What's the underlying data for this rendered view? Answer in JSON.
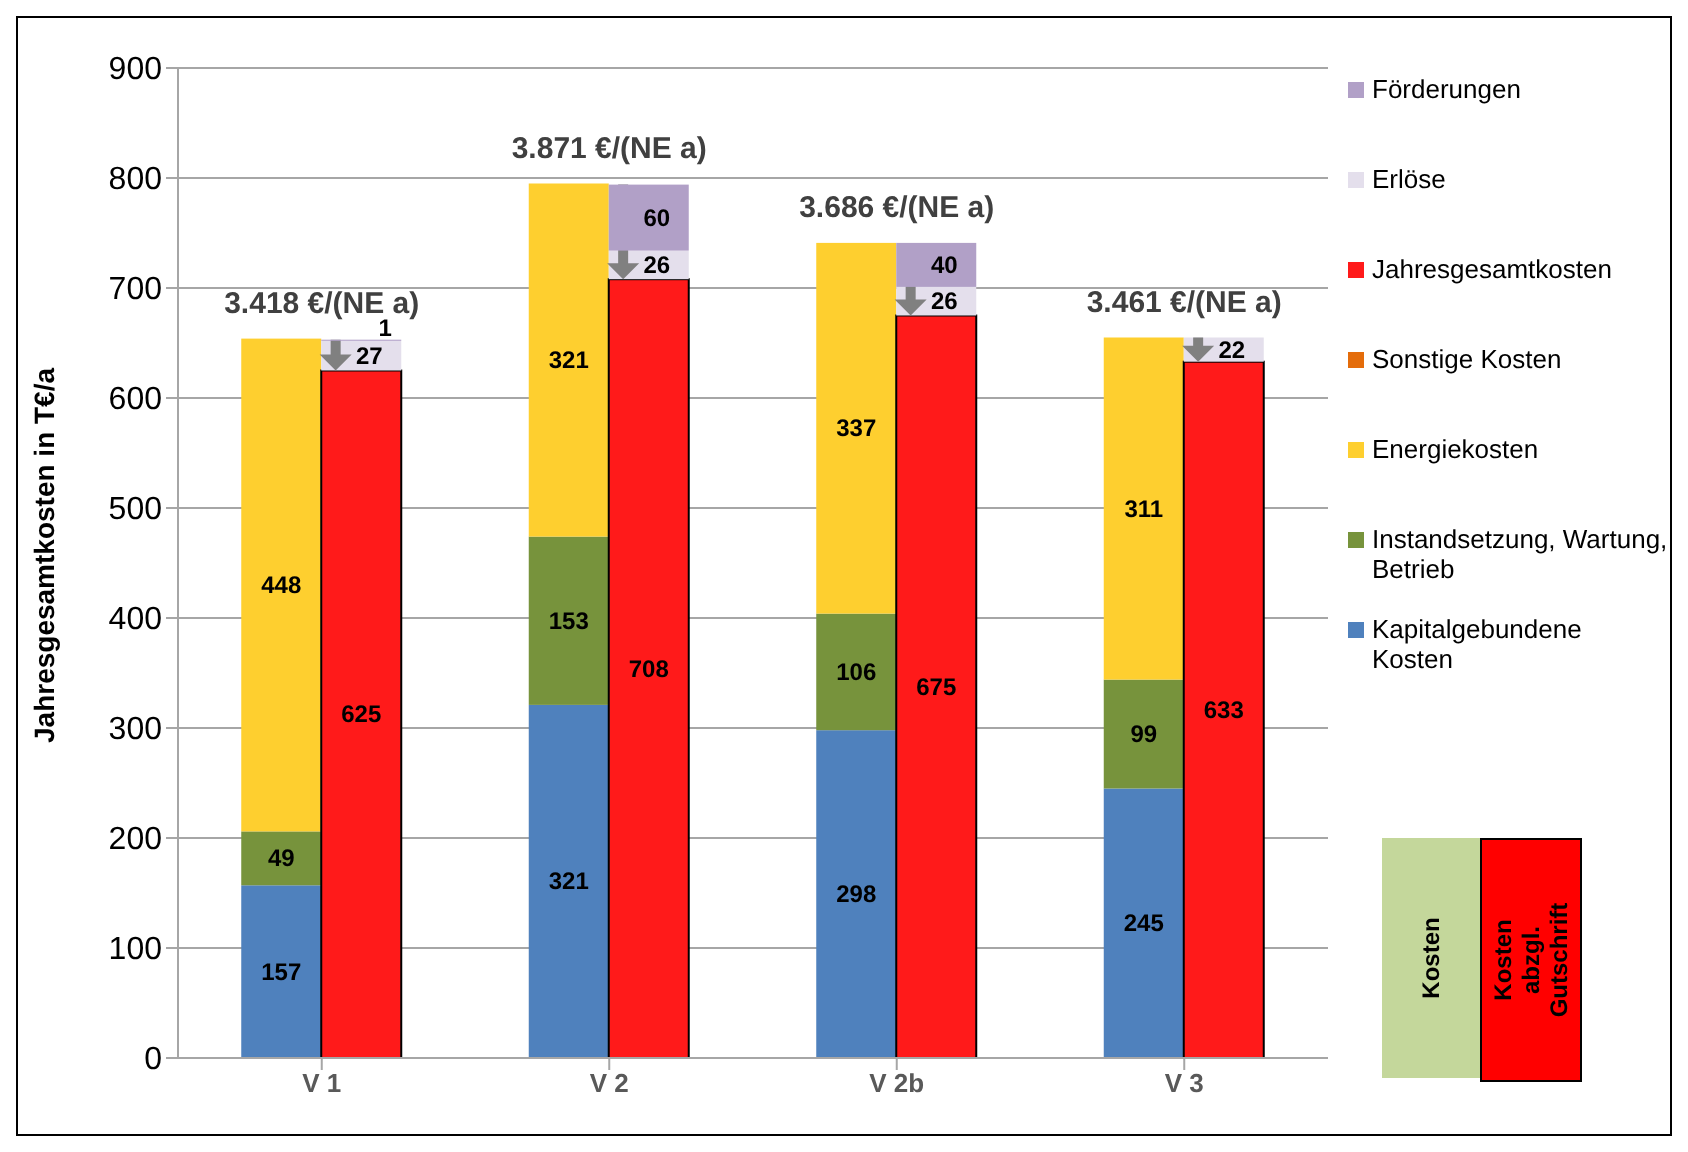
{
  "chart_data": {
    "type": "bar",
    "categories": [
      "V 1",
      "V 2",
      "V 2b",
      "V 3"
    ],
    "ylabel": "Jahresgesamtkosten  in T€/a",
    "ylim": [
      0,
      900
    ],
    "yticks": [
      0,
      100,
      200,
      300,
      400,
      500,
      600,
      700,
      800,
      900
    ],
    "grid": "y",
    "legend": "right",
    "series": [
      {
        "name": "Kapitalgebundene Kosten",
        "color": "#4f81bd",
        "values": [
          157,
          321,
          298,
          245
        ],
        "base": [
          0,
          0,
          0,
          0
        ],
        "value_labels": [
          "157",
          "321",
          "298",
          "245"
        ]
      },
      {
        "name": "Instandsetzung, Wartung, Betrieb",
        "color": "#77933c",
        "values": [
          49,
          153,
          106,
          99
        ],
        "base": [
          157,
          321,
          298,
          245
        ],
        "value_labels": [
          "49",
          "153",
          "106",
          "99"
        ]
      },
      {
        "name": "Energiekosten",
        "color": "#fecf2f",
        "values": [
          448,
          321,
          337,
          311
        ],
        "base": [
          206,
          474,
          404,
          344
        ],
        "value_labels": [
          "448",
          "321",
          "337",
          "311"
        ]
      },
      {
        "name": "Sonstige Kosten",
        "color": "#e46c0a",
        "values": [
          null,
          null,
          null,
          null
        ]
      },
      {
        "name": "Jahresgesamtkosten",
        "color": "#ff1a1a",
        "values": [
          625,
          708,
          675,
          633
        ],
        "base": [
          0,
          0,
          0,
          0
        ],
        "value_labels": [
          "625",
          "708",
          "675",
          "633"
        ]
      },
      {
        "name": "Erlöse",
        "color": "#e4dfec",
        "values": [
          27,
          26,
          26,
          22
        ],
        "base": [
          625,
          708,
          675,
          633
        ],
        "value_labels": [
          "27",
          "26",
          "26",
          "22"
        ]
      },
      {
        "name": "Förderungen",
        "color": "#b1a0c7",
        "values": [
          1,
          60,
          40,
          null
        ],
        "base": [
          652,
          734,
          701,
          null
        ],
        "value_labels": [
          "1",
          "60",
          "40",
          null
        ]
      }
    ],
    "annotations": [
      "3.418 €/(NE a)",
      "3.871 €/(NE a)",
      "3.686 €/(NE a)",
      "3.461 €/(NE a)",
      "Kosten",
      "Kosten abzgl. Gutschrift"
    ]
  }
}
